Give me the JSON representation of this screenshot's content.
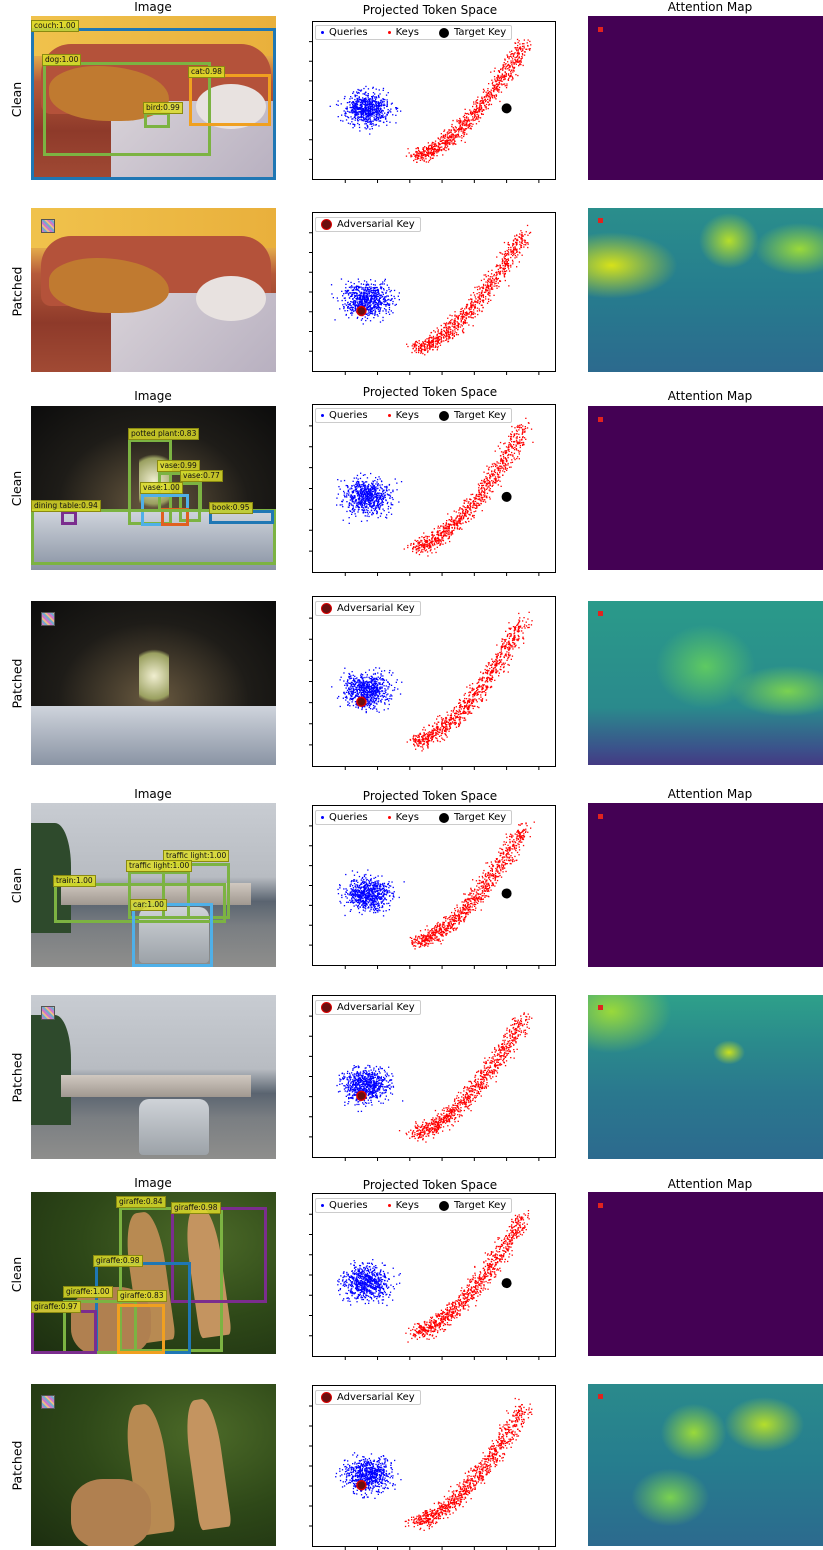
{
  "column_titles": {
    "image": "Image",
    "space": "Projected Token Space",
    "attention": "Attention Map"
  },
  "row_labels": [
    "Clean",
    "Patched",
    "Clean",
    "Patched",
    "Clean",
    "Patched",
    "Clean",
    "Patched"
  ],
  "legend": {
    "queries": "Queries",
    "keys": "Keys",
    "target_key": "Target Key",
    "adversarial_key": "Adversarial Key"
  },
  "colors": {
    "queries": "#0000ff",
    "keys": "#ff0000",
    "target_key": "#000000",
    "adversarial_key": "#6b0f0f",
    "attention_clean": "#440154"
  },
  "examples": [
    {
      "detections": [
        {
          "label": "couch:1.00",
          "color": "#1f77b4"
        },
        {
          "label": "dog:1.00",
          "color": "#7cb342"
        },
        {
          "label": "cat:0.98",
          "color": "#f0a020"
        },
        {
          "label": "bird:0.99",
          "color": "#7cb342"
        }
      ]
    },
    {
      "detections": [
        {
          "label": "potted plant:0.83",
          "color": "#7cb342"
        },
        {
          "label": "vase:0.99",
          "color": "#7cb342"
        },
        {
          "label": "vase:0.77",
          "color": "#7cb342"
        },
        {
          "label": "vase:1.00",
          "color": "#4fb0e8"
        },
        {
          "label": "dining table:0.94",
          "color": "#7cb342"
        },
        {
          "label": "book:0.95",
          "color": "#1f77b4"
        }
      ]
    },
    {
      "detections": [
        {
          "label": "traffic light:1.00",
          "color": "#7cb342"
        },
        {
          "label": "traffic light:1.00",
          "color": "#7cb342"
        },
        {
          "label": "train:1.00",
          "color": "#7cb342"
        },
        {
          "label": "car:1.00",
          "color": "#4fb0e8"
        }
      ]
    },
    {
      "detections": [
        {
          "label": "giraffe:0.84",
          "color": "#7cb342"
        },
        {
          "label": "giraffe:0.98",
          "color": "#7b2d8e"
        },
        {
          "label": "giraffe:0.98",
          "color": "#1f77b4"
        },
        {
          "label": "giraffe:1.00",
          "color": "#7cb342"
        },
        {
          "label": "giraffe:0.83",
          "color": "#f0a020"
        },
        {
          "label": "giraffe:0.97",
          "color": "#7b2d8e"
        }
      ]
    }
  ]
}
